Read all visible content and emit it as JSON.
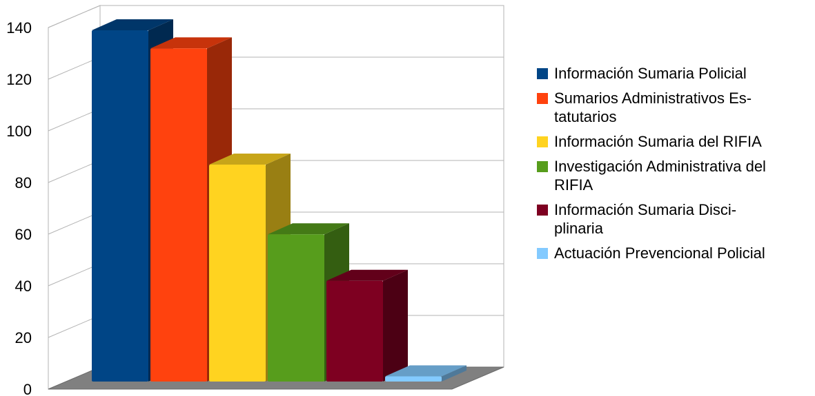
{
  "chart_data": {
    "type": "bar",
    "title": "",
    "xlabel": "",
    "ylabel": "",
    "ylim": [
      0,
      140
    ],
    "yticks": [
      "0",
      "20",
      "40",
      "60",
      "80",
      "100",
      "120",
      "140"
    ],
    "grid": true,
    "style": "3d",
    "legend_position": "right",
    "series": [
      {
        "name": "Información Sumaria Policial",
        "value": 136,
        "color": "#004586"
      },
      {
        "name": "Sumarios Administrativos Es-tatutarios",
        "legend_lines": [
          "Sumarios Administrativos Es-",
          "tatutarios"
        ],
        "value": 129,
        "color": "#ff420e"
      },
      {
        "name": "Información Sumaria del RIFIA",
        "value": 84,
        "color": "#ffd320"
      },
      {
        "name": "Investigación Administrativa del RIFIA",
        "legend_lines": [
          "Investigación Administrativa del",
          "RIFIA"
        ],
        "value": 57,
        "color": "#579d1c"
      },
      {
        "name": "Información Sumaria Disci-plinaria",
        "legend_lines": [
          "Información Sumaria Disci-",
          "plinaria"
        ],
        "value": 39,
        "color": "#7e0021"
      },
      {
        "name": "Actuación Prevencional Policial",
        "value": 2,
        "color": "#83caff"
      }
    ]
  }
}
